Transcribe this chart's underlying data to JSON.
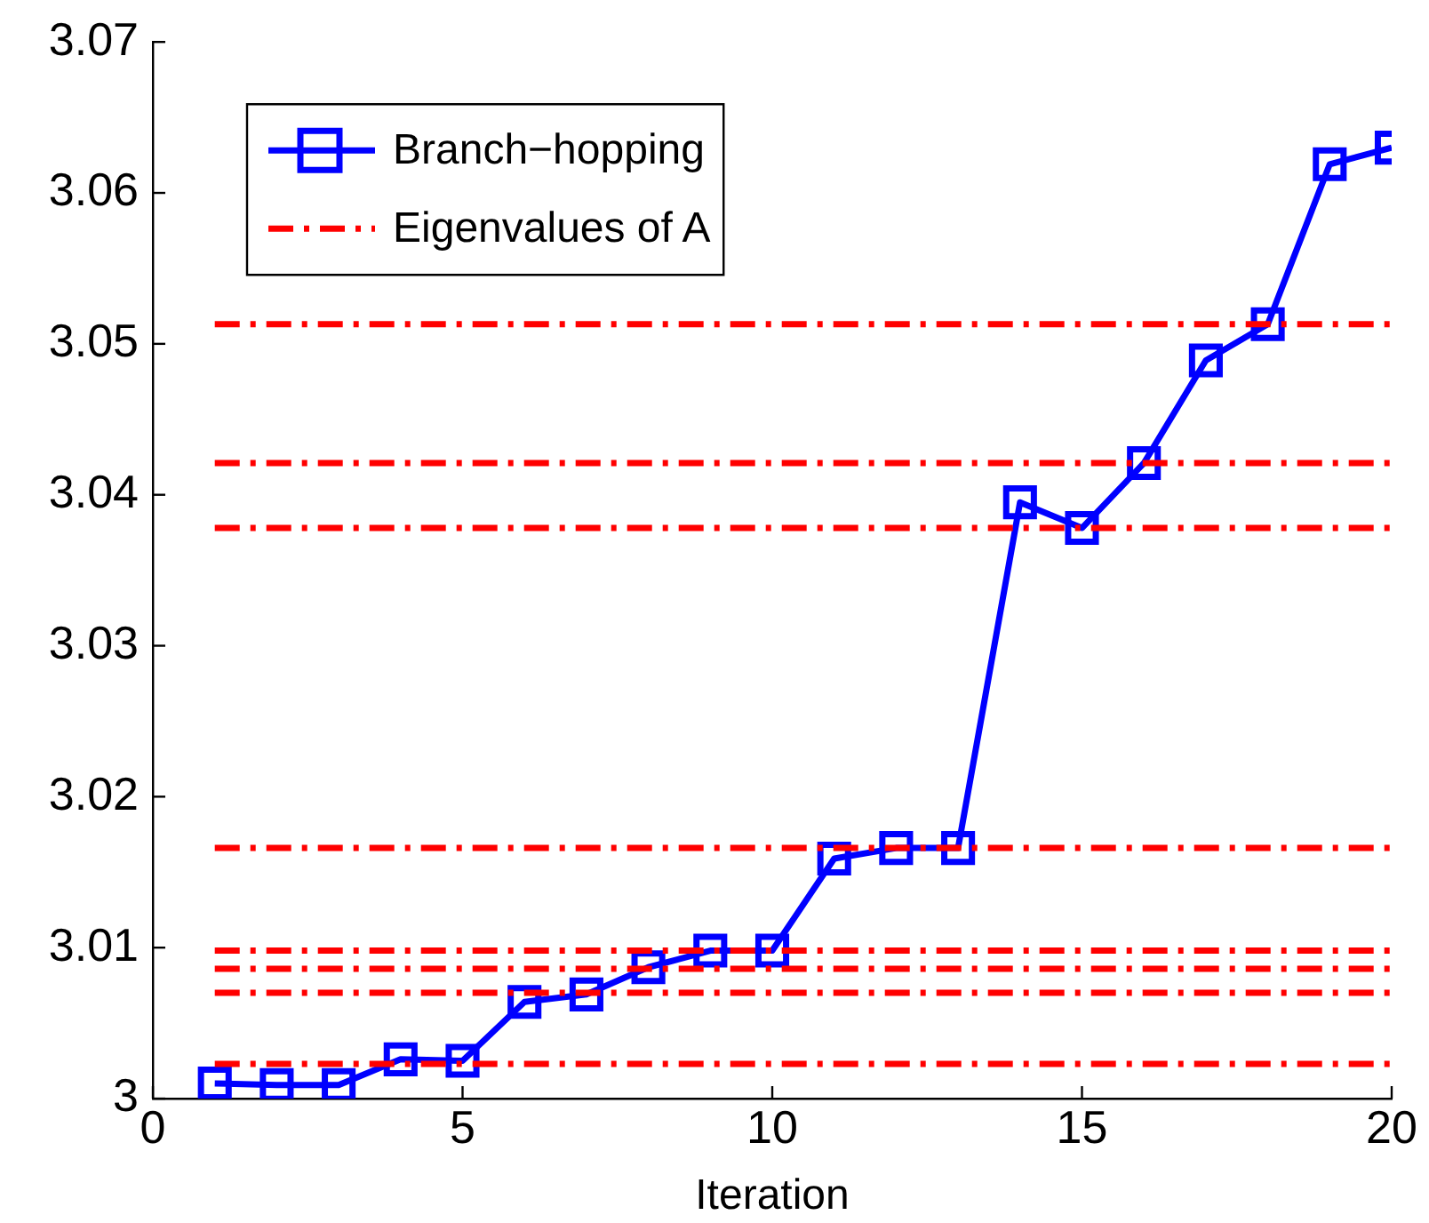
{
  "chart_data": {
    "type": "line",
    "xlabel": "Iteration",
    "xlim": [
      0,
      20
    ],
    "xticks": [
      0,
      5,
      10,
      15,
      20
    ],
    "ylim": [
      3,
      3.07
    ],
    "yticks": [
      3,
      3.01,
      3.02,
      3.03,
      3.04,
      3.05,
      3.06,
      3.07
    ],
    "legend": "top left",
    "series": [
      {
        "name": "Branch−hopping",
        "color": "#0000ff",
        "marker": "square",
        "line_style": "solid",
        "x": [
          1,
          2,
          3,
          4,
          5,
          6,
          7,
          8,
          9,
          10,
          11,
          12,
          13,
          14,
          15,
          16,
          17,
          18,
          19,
          20
        ],
        "values": [
          3.001,
          3.0009,
          3.0009,
          3.0026,
          3.0025,
          3.0064,
          3.0069,
          3.0087,
          3.0098,
          3.0098,
          3.0159,
          3.0166,
          3.0166,
          3.0395,
          3.0378,
          3.0421,
          3.0489,
          3.0513,
          3.0619,
          3.063
        ]
      },
      {
        "name": "Eigenvalues of A",
        "color": "#ff0000",
        "marker": "none",
        "line_style": "dashed",
        "x": [
          1,
          20
        ],
        "values": [
          3.0513,
          3.0513
        ]
      },
      {
        "color": "#ff0000",
        "marker": "none",
        "line_style": "dashed",
        "x": [
          1,
          20
        ],
        "values": [
          3.0421,
          3.0421
        ]
      },
      {
        "color": "#ff0000",
        "marker": "none",
        "line_style": "dashed",
        "x": [
          1,
          20
        ],
        "values": [
          3.0378,
          3.0378
        ]
      },
      {
        "color": "#ff0000",
        "marker": "none",
        "line_style": "dashed",
        "x": [
          1,
          20
        ],
        "values": [
          3.0166,
          3.0166
        ]
      },
      {
        "color": "#ff0000",
        "marker": "none",
        "line_style": "dashed",
        "x": [
          1,
          20
        ],
        "values": [
          3.0098,
          3.0098
        ]
      },
      {
        "color": "#ff0000",
        "marker": "none",
        "line_style": "dashed",
        "x": [
          1,
          20
        ],
        "values": [
          3.0086,
          3.0086
        ]
      },
      {
        "color": "#ff0000",
        "marker": "none",
        "line_style": "dashed",
        "x": [
          1,
          20
        ],
        "values": [
          3.007,
          3.007
        ]
      },
      {
        "color": "#ff0000",
        "marker": "none",
        "line_style": "dashed",
        "x": [
          1,
          20
        ],
        "values": [
          3.0023,
          3.0023
        ]
      }
    ]
  }
}
